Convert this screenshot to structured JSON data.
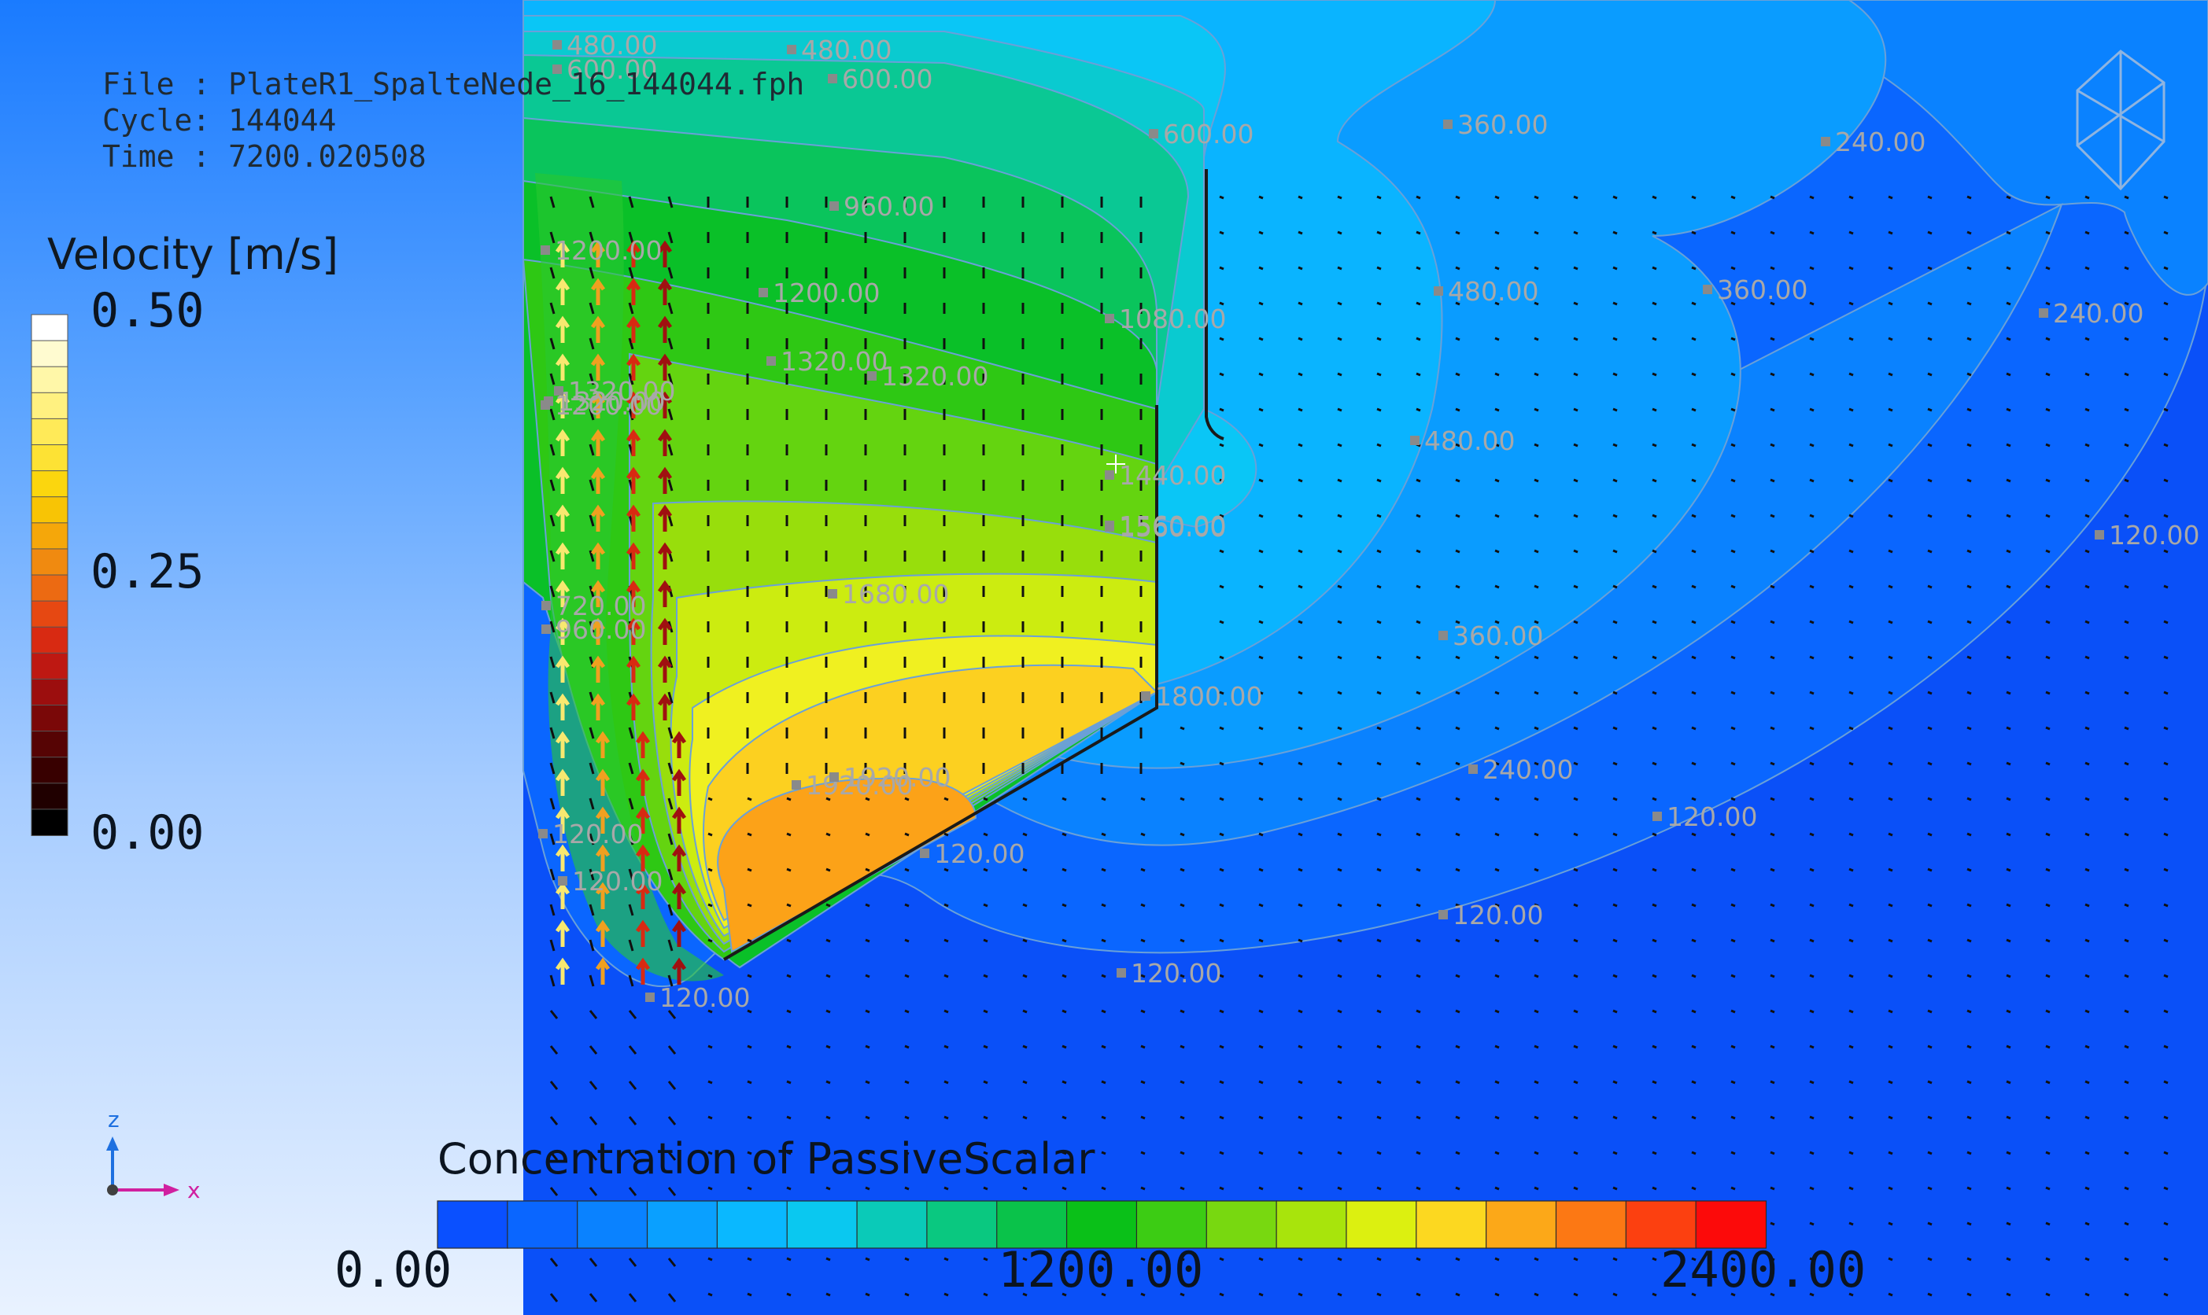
{
  "file_info": {
    "file": "File : PlateR1_SpalteNede_16_144044.fph",
    "cycle": "Cycle: 144044",
    "time": "Time : 7200.020508"
  },
  "velocity_legend": {
    "title": "Velocity [m/s]",
    "ticks": [
      "0.50",
      "0.25",
      "0.00"
    ],
    "colors": [
      "#ffffff",
      "#fffbd0",
      "#fff7a8",
      "#fff180",
      "#ffea58",
      "#fde234",
      "#fbd60e",
      "#f8c405",
      "#f5a70a",
      "#f08a10",
      "#ec6a12",
      "#e64812",
      "#d82a12",
      "#be1812",
      "#9c0e0e",
      "#7a0808",
      "#560404",
      "#380000",
      "#200000",
      "#000000"
    ]
  },
  "concentration_legend": {
    "title": "Concentration of PassiveScalar",
    "ticks": [
      "0.00",
      "1200.00",
      "2400.00"
    ],
    "colors": [
      "#0a50ff",
      "#0a66ff",
      "#0a82ff",
      "#0aa0ff",
      "#0ab8ff",
      "#0ac8f0",
      "#0acab8",
      "#0ac880",
      "#0ac24a",
      "#0ac018",
      "#3ccc14",
      "#78d810",
      "#a8e40c",
      "#dcf010",
      "#fcd820",
      "#fca818",
      "#fc7814",
      "#fc4010",
      "#fc0a0a"
    ]
  },
  "contour_labels": [
    "480.00",
    "480.00",
    "600.00",
    "600.00",
    "600.00",
    "360.00",
    "240.00",
    "960.00",
    "1200.00",
    "1200.00",
    "1200.00",
    "1080.00",
    "480.00",
    "360.00",
    "240.00",
    "1320.00",
    "1320.00",
    "1320.00",
    "1320.00",
    "480.00",
    "1440.00",
    "1560.00",
    "1560.00",
    "120.00",
    "1680.00",
    "360.00",
    "720.00",
    "960.00",
    "1800.00",
    "1920.00",
    "1920.00",
    "240.00",
    "120.00",
    "120.00",
    "120.00",
    "120.00",
    "120.00",
    "120.00",
    "120.00"
  ],
  "axes_triad": {
    "z": "z",
    "x": "x"
  },
  "icons": {
    "logo": "wireframe-logo-icon",
    "cursor": "crosshair-cursor-icon"
  }
}
